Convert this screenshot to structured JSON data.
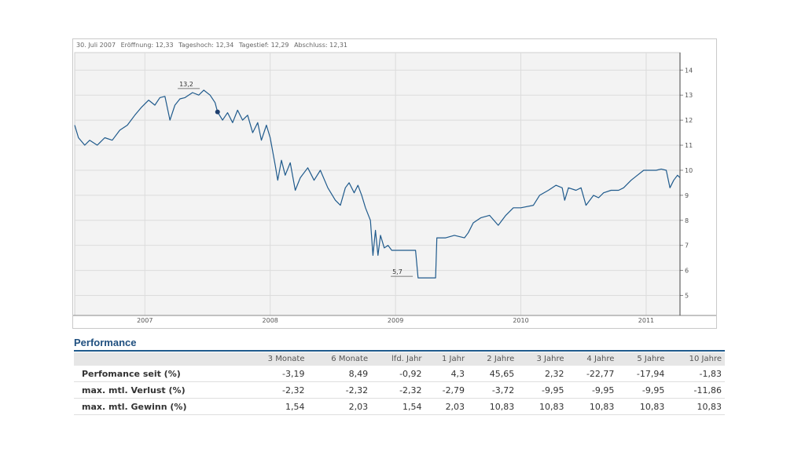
{
  "info": {
    "date": "30. Juli 2007",
    "open": "Eröffnung: 12,33",
    "high": "Tageshoch: 12,34",
    "low": "Tagestief: 12,29",
    "close": "Abschluss: 12,31"
  },
  "chart_data": {
    "type": "line",
    "x_ticks": [
      "2007",
      "2008",
      "2009",
      "2010",
      "2011"
    ],
    "y_ticks": [
      5,
      6,
      7,
      8,
      9,
      10,
      11,
      12,
      13,
      14
    ],
    "ylim": [
      4.2,
      14.7
    ],
    "xlim": [
      2006.44,
      2011.27
    ],
    "grid": true,
    "annotations": [
      {
        "label": "13,2",
        "x": 2007.35,
        "y": 13.2
      },
      {
        "label": "5,7",
        "x": 2009.05,
        "y": 5.7
      }
    ],
    "marker": {
      "x": 2007.58,
      "y": 12.33
    },
    "series": [
      {
        "color": "#1f5a8c",
        "points": [
          [
            2006.44,
            11.8
          ],
          [
            2006.47,
            11.3
          ],
          [
            2006.52,
            11.0
          ],
          [
            2006.56,
            11.2
          ],
          [
            2006.62,
            11.0
          ],
          [
            2006.68,
            11.3
          ],
          [
            2006.74,
            11.2
          ],
          [
            2006.8,
            11.6
          ],
          [
            2006.86,
            11.8
          ],
          [
            2006.92,
            12.2
          ],
          [
            2006.97,
            12.5
          ],
          [
            2007.03,
            12.8
          ],
          [
            2007.08,
            12.6
          ],
          [
            2007.12,
            12.9
          ],
          [
            2007.16,
            12.95
          ],
          [
            2007.2,
            12.0
          ],
          [
            2007.24,
            12.6
          ],
          [
            2007.28,
            12.85
          ],
          [
            2007.32,
            12.9
          ],
          [
            2007.38,
            13.1
          ],
          [
            2007.43,
            13.0
          ],
          [
            2007.47,
            13.2
          ],
          [
            2007.52,
            13.0
          ],
          [
            2007.56,
            12.7
          ],
          [
            2007.58,
            12.33
          ],
          [
            2007.62,
            12.0
          ],
          [
            2007.66,
            12.3
          ],
          [
            2007.7,
            11.9
          ],
          [
            2007.74,
            12.4
          ],
          [
            2007.78,
            12.0
          ],
          [
            2007.82,
            12.2
          ],
          [
            2007.86,
            11.5
          ],
          [
            2007.9,
            11.9
          ],
          [
            2007.93,
            11.2
          ],
          [
            2007.97,
            11.8
          ],
          [
            2008.0,
            11.3
          ],
          [
            2008.04,
            10.2
          ],
          [
            2008.06,
            9.6
          ],
          [
            2008.09,
            10.4
          ],
          [
            2008.12,
            9.8
          ],
          [
            2008.16,
            10.3
          ],
          [
            2008.2,
            9.2
          ],
          [
            2008.24,
            9.7
          ],
          [
            2008.3,
            10.1
          ],
          [
            2008.35,
            9.6
          ],
          [
            2008.4,
            10.0
          ],
          [
            2008.46,
            9.3
          ],
          [
            2008.52,
            8.8
          ],
          [
            2008.56,
            8.6
          ],
          [
            2008.6,
            9.3
          ],
          [
            2008.63,
            9.5
          ],
          [
            2008.67,
            9.1
          ],
          [
            2008.7,
            9.4
          ],
          [
            2008.73,
            9.0
          ],
          [
            2008.76,
            8.5
          ],
          [
            2008.8,
            8.0
          ],
          [
            2008.82,
            6.6
          ],
          [
            2008.84,
            7.6
          ],
          [
            2008.86,
            6.6
          ],
          [
            2008.88,
            7.4
          ],
          [
            2008.91,
            6.9
          ],
          [
            2008.94,
            7.0
          ],
          [
            2008.97,
            6.8
          ],
          [
            2009.1,
            6.8
          ],
          [
            2009.16,
            6.8
          ],
          [
            2009.18,
            5.7
          ],
          [
            2009.32,
            5.7
          ],
          [
            2009.33,
            7.3
          ],
          [
            2009.4,
            7.3
          ],
          [
            2009.47,
            7.4
          ],
          [
            2009.55,
            7.3
          ],
          [
            2009.58,
            7.5
          ],
          [
            2009.62,
            7.9
          ],
          [
            2009.68,
            8.1
          ],
          [
            2009.75,
            8.2
          ],
          [
            2009.82,
            7.8
          ],
          [
            2009.88,
            8.2
          ],
          [
            2009.94,
            8.5
          ],
          [
            2010.0,
            8.5
          ],
          [
            2010.1,
            8.6
          ],
          [
            2010.15,
            9.0
          ],
          [
            2010.22,
            9.2
          ],
          [
            2010.28,
            9.4
          ],
          [
            2010.33,
            9.3
          ],
          [
            2010.35,
            8.8
          ],
          [
            2010.38,
            9.3
          ],
          [
            2010.44,
            9.2
          ],
          [
            2010.48,
            9.3
          ],
          [
            2010.52,
            8.6
          ],
          [
            2010.58,
            9.0
          ],
          [
            2010.62,
            8.9
          ],
          [
            2010.66,
            9.1
          ],
          [
            2010.72,
            9.2
          ],
          [
            2010.78,
            9.2
          ],
          [
            2010.82,
            9.3
          ],
          [
            2010.88,
            9.6
          ],
          [
            2010.93,
            9.8
          ],
          [
            2010.98,
            10.0
          ],
          [
            2011.03,
            10.0
          ],
          [
            2011.08,
            10.0
          ],
          [
            2011.12,
            10.05
          ],
          [
            2011.16,
            10.0
          ],
          [
            2011.19,
            9.3
          ],
          [
            2011.22,
            9.6
          ],
          [
            2011.25,
            9.8
          ],
          [
            2011.27,
            9.7
          ]
        ]
      }
    ]
  },
  "performance": {
    "title": "Performance",
    "columns": [
      "3 Monate",
      "6 Monate",
      "lfd. Jahr",
      "1 Jahr",
      "2 Jahre",
      "3 Jahre",
      "4 Jahre",
      "5 Jahre",
      "10 Jahre"
    ],
    "rows": [
      {
        "label": "Perfomance seit (%)",
        "values": [
          "-3,19",
          "8,49",
          "-0,92",
          "4,3",
          "45,65",
          "2,32",
          "-22,77",
          "-17,94",
          "-1,83"
        ]
      },
      {
        "label": "max. mtl. Verlust (%)",
        "values": [
          "-2,32",
          "-2,32",
          "-2,32",
          "-2,79",
          "-3,72",
          "-9,95",
          "-9,95",
          "-9,95",
          "-11,86"
        ]
      },
      {
        "label": "max. mtl. Gewinn (%)",
        "values": [
          "1,54",
          "2,03",
          "1,54",
          "2,03",
          "10,83",
          "10,83",
          "10,83",
          "10,83",
          "10,83"
        ]
      }
    ]
  }
}
